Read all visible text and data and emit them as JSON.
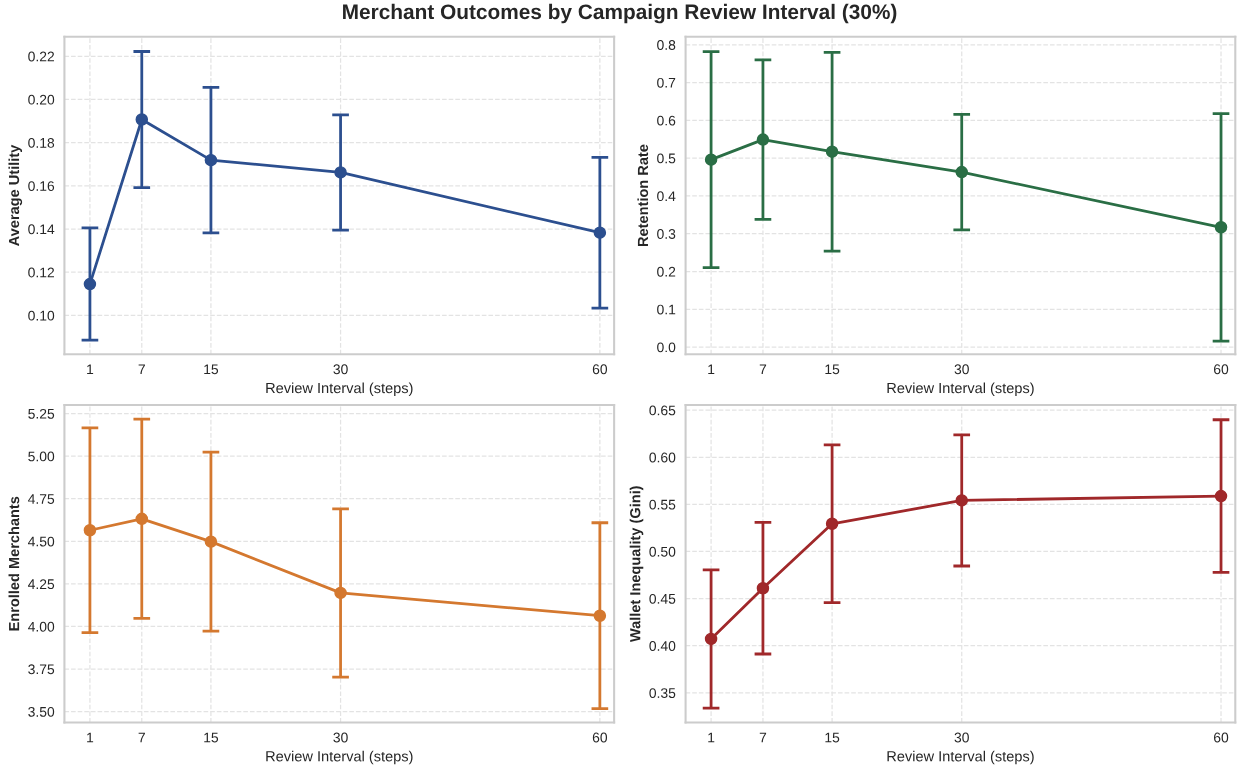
{
  "chart_data": [
    {
      "type": "line",
      "title": "Merchant Outcomes by Campaign Review Interval (30%)",
      "xlabel": "Review Interval (steps)",
      "ylabel": "Average Utility",
      "x": [
        1,
        7,
        15,
        30,
        60
      ],
      "xlim": [
        -1.95,
        61.65
      ],
      "xticks": [
        1,
        7,
        15,
        30,
        60
      ],
      "ylim": [
        0.082,
        0.229
      ],
      "yticks": [
        {
          "value": 0.1,
          "label": "0.10"
        },
        0.12,
        0.14,
        0.16,
        0.18,
        {
          "value": 0.2,
          "label": "0.20"
        },
        0.22
      ],
      "grid": true,
      "marker": "circle",
      "line_style": "solid",
      "series": [
        {
          "color": "#2c4f8f",
          "values": [
            0.1145,
            0.1907,
            0.1719,
            0.1662,
            0.1383
          ],
          "errors": [
            0.026,
            0.0315,
            0.0337,
            0.0267,
            0.0349
          ]
        }
      ]
    },
    {
      "type": "line",
      "xlabel": "Review Interval (steps)",
      "ylabel": "Retention Rate",
      "x": [
        1,
        7,
        15,
        30,
        60
      ],
      "xlim": [
        -1.95,
        61.65
      ],
      "xticks": [
        1,
        7,
        15,
        30,
        60
      ],
      "ylim": [
        -0.019,
        0.821
      ],
      "yticks": [
        {
          "value": 0,
          "label": "0.0"
        },
        0.1,
        0.2,
        0.3,
        0.4,
        0.5,
        0.6,
        0.7,
        0.8
      ],
      "grid": true,
      "marker": "circle",
      "line_style": "solid",
      "series": [
        {
          "color": "#2a6e45",
          "values": [
            0.496,
            0.549,
            0.517,
            0.463,
            0.317
          ],
          "errors": [
            0.286,
            0.211,
            0.263,
            0.153,
            0.301
          ]
        }
      ]
    },
    {
      "type": "line",
      "xlabel": "Review Interval (steps)",
      "ylabel": "Enrolled Merchants",
      "x": [
        1,
        7,
        15,
        30,
        60
      ],
      "xlim": [
        -1.95,
        61.65
      ],
      "xticks": [
        1,
        7,
        15,
        30,
        60
      ],
      "ylim": [
        3.436,
        5.3
      ],
      "yticks": [
        {
          "value": 3.5,
          "label": "3.50"
        },
        3.75,
        {
          "value": 4,
          "label": "4.00"
        },
        4.25,
        {
          "value": 4.5,
          "label": "4.50"
        },
        4.75,
        {
          "value": 5,
          "label": "5.00"
        },
        5.25
      ],
      "grid": true,
      "marker": "circle",
      "line_style": "solid",
      "series": [
        {
          "color": "#d4782f",
          "values": [
            4.565,
            4.632,
            4.498,
            4.197,
            4.063
          ],
          "errors": [
            0.601,
            0.585,
            0.526,
            0.494,
            0.546
          ]
        }
      ]
    },
    {
      "type": "line",
      "xlabel": "Review Interval (steps)",
      "ylabel": "Wallet Inequality (Gini)",
      "x": [
        1,
        7,
        15,
        30,
        60
      ],
      "xlim": [
        -1.95,
        61.65
      ],
      "xticks": [
        1,
        7,
        15,
        30,
        60
      ],
      "ylim": [
        0.3185,
        0.6554
      ],
      "yticks": [
        0.35,
        {
          "value": 0.4,
          "label": "0.40"
        },
        0.45,
        {
          "value": 0.5,
          "label": "0.50"
        },
        0.55,
        {
          "value": 0.6,
          "label": "0.60"
        },
        0.65
      ],
      "grid": true,
      "marker": "circle",
      "line_style": "solid",
      "series": [
        {
          "color": "#a0282a",
          "values": [
            0.4072,
            0.461,
            0.5294,
            0.5542,
            0.5588
          ],
          "errors": [
            0.0734,
            0.0698,
            0.0837,
            0.0696,
            0.081
          ]
        }
      ]
    }
  ]
}
